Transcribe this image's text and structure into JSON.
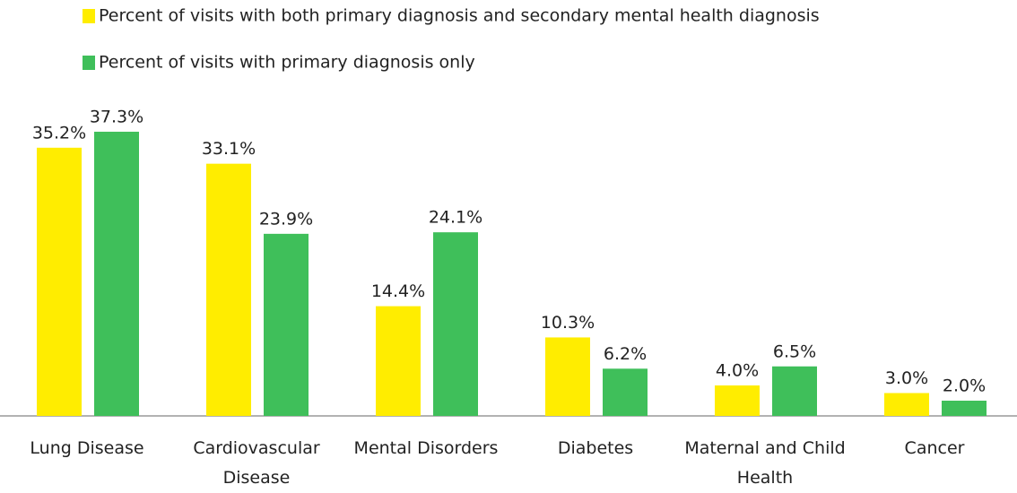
{
  "chart_data": {
    "type": "bar",
    "categories": [
      "Lung Disease",
      "Cardiovascular Disease",
      "Mental Disorders",
      "Diabetes",
      "Maternal and Child Health",
      "Cancer"
    ],
    "series": [
      {
        "name": "Percent of visits with both primary diagnosis and secondary mental health diagnosis",
        "color": "#ffed00",
        "values": [
          35.2,
          33.1,
          14.4,
          10.3,
          4.0,
          3.0
        ],
        "value_labels": [
          "35.2%",
          "33.1%",
          "14.4%",
          "10.3%",
          "4.0%",
          "3.0%"
        ]
      },
      {
        "name": "Percent of visits with primary diagnosis only",
        "color": "#3fbf5a",
        "values": [
          37.3,
          23.9,
          24.1,
          6.2,
          6.5,
          2.0
        ],
        "value_labels": [
          "37.3%",
          "23.9%",
          "24.1%",
          "6.2%",
          "6.5%",
          "2.0%"
        ]
      }
    ]
  }
}
